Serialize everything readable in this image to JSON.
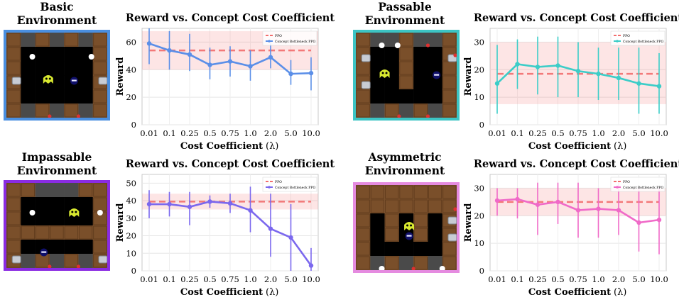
{
  "panels": [
    {
      "env_title_line1": "Basic",
      "env_title_line2": "Environment",
      "border_color": "#4a8fe0",
      "layout": "basic",
      "chart_data": {
        "type": "line",
        "title": "Reward vs. Concept Cost Coefficient",
        "xlabel": "Cost Coefficient",
        "xlabel_symbol": "(λ)",
        "ylabel": "Reward",
        "categories": [
          "0.01",
          "0.1",
          "0.25",
          "0.5",
          "0.75",
          "1.0",
          "2.0",
          "5.0",
          "10.0"
        ],
        "ylim": [
          0,
          70
        ],
        "yticks": [
          0,
          20,
          40,
          60
        ],
        "legend": "top-right",
        "baseline": {
          "name": "PPO",
          "value": 54,
          "band": [
            40,
            68
          ],
          "color": "#f26d6d"
        },
        "series": [
          {
            "name": "Concept Bottleneck PPO",
            "color": "#5b8fe8",
            "values": [
              59,
              54,
              51,
              43.5,
              46,
              42.5,
              49,
              37,
              37.5
            ],
            "err_low": [
              44,
              40,
              39,
              33,
              35,
              32,
              41,
              29,
              25
            ],
            "err_high": [
              70,
              68,
              66,
              56,
              57,
              54,
              59,
              47,
              49
            ]
          }
        ],
        "grid": true
      }
    },
    {
      "env_title_line1": "Passable",
      "env_title_line2": "Environment",
      "border_color": "#3cc4c4",
      "layout": "passable",
      "chart_data": {
        "type": "line",
        "title": "Reward vs. Concept Cost Coefficient",
        "xlabel": "Cost Coefficient",
        "xlabel_symbol": "(λ)",
        "ylabel": "Reward",
        "categories": [
          "0.01",
          "0.1",
          "0.25",
          "0.5",
          "0.75",
          "1.0",
          "2.0",
          "5.0",
          "10.0"
        ],
        "ylim": [
          0,
          35
        ],
        "yticks": [
          0,
          10,
          20,
          30
        ],
        "legend": "top-right",
        "baseline": {
          "name": "PPO",
          "value": 18.5,
          "band": [
            7.5,
            30
          ],
          "color": "#f26d6d"
        },
        "series": [
          {
            "name": "Concept Bottleneck PPO",
            "color": "#3ccdc8",
            "values": [
              15,
              22,
              21,
              21.5,
              19.5,
              18.5,
              17,
              15,
              14
            ],
            "err_low": [
              4,
              13,
              11,
              10,
              10,
              9,
              9,
              4,
              4
            ],
            "err_high": [
              29,
              31,
              32,
              32,
              30,
              28,
              28,
              28,
              26
            ]
          }
        ],
        "grid": true
      }
    },
    {
      "env_title_line1": "Impassable",
      "env_title_line2": "Environment",
      "border_color": "#8a2be2",
      "layout": "impassable",
      "chart_data": {
        "type": "line",
        "title": "Reward vs. Concept Cost Coefficient",
        "xlabel": "Cost Coefficient",
        "xlabel_symbol": "(λ)",
        "ylabel": "Reward",
        "categories": [
          "0.01",
          "0.1",
          "0.25",
          "0.5",
          "0.75",
          "1.0",
          "2.0",
          "5.0",
          "10.0"
        ],
        "ylim": [
          0,
          55
        ],
        "yticks": [
          0,
          10,
          20,
          30,
          40,
          50
        ],
        "legend": "top-right",
        "baseline": {
          "name": "PPO",
          "value": 39.5,
          "band": [
            35,
            44
          ],
          "color": "#f26d6d"
        },
        "series": [
          {
            "name": "Concept Bottleneck PPO",
            "color": "#7b68ee",
            "values": [
              38,
              38,
              36.5,
              39.5,
              38.5,
              34.5,
              24,
              19,
              3
            ],
            "err_low": [
              30,
              31,
              26,
              36,
              33,
              22,
              8,
              0,
              0
            ],
            "err_high": [
              46,
              45,
              45,
              43,
              44,
              48,
              44,
              38,
              13
            ]
          }
        ],
        "grid": true
      }
    },
    {
      "env_title_line1": "Asymmetric",
      "env_title_line2": "Environment",
      "border_color": "#e58be0",
      "layout": "asymmetric",
      "chart_data": {
        "type": "line",
        "title": "Reward vs. Concept Cost Coefficient",
        "xlabel": "Cost Coefficient",
        "xlabel_symbol": "(λ)",
        "ylabel": "Reward",
        "categories": [
          "0.01",
          "0.1",
          "0.25",
          "0.5",
          "0.75",
          "1.0",
          "2.0",
          "5.0",
          "10.0"
        ],
        "ylim": [
          0,
          35
        ],
        "yticks": [
          0,
          10,
          20,
          30
        ],
        "legend": "top-right",
        "baseline": {
          "name": "PPO",
          "value": 25,
          "band": [
            20,
            30
          ],
          "color": "#f26d6d"
        },
        "series": [
          {
            "name": "Concept Bottleneck PPO",
            "color": "#f06ac8",
            "values": [
              25.5,
              26,
              24,
              25,
              22,
              22.5,
              22,
              17.5,
              18.5
            ],
            "err_low": [
              20,
              19,
              13,
              17,
              12,
              12,
              13,
              7,
              6
            ],
            "err_high": [
              30,
              30,
              32,
              32,
              32,
              30,
              32,
              30,
              30
            ]
          }
        ],
        "grid": true
      }
    }
  ]
}
